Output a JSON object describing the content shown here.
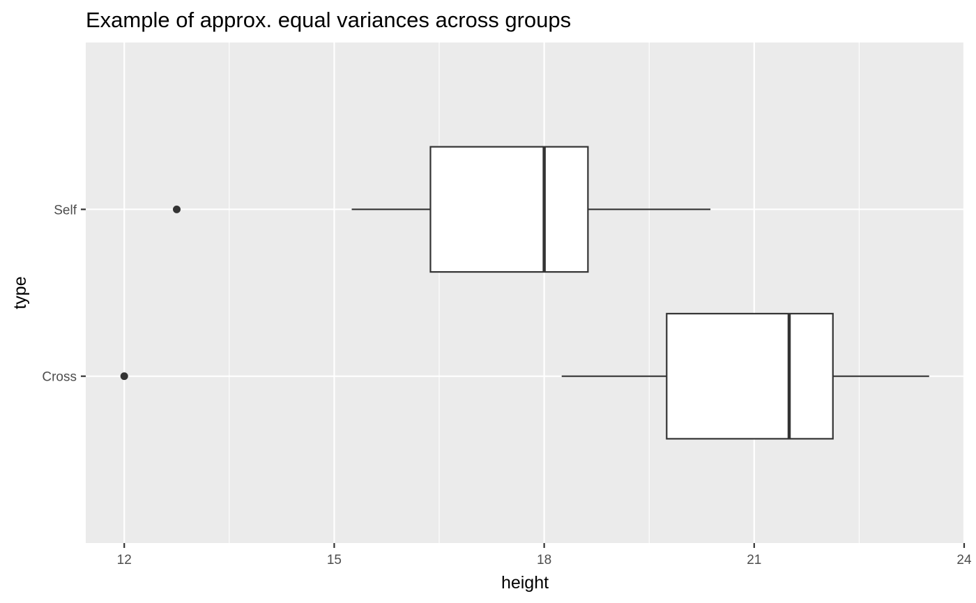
{
  "chart_data": {
    "type": "boxplot",
    "orientation": "horizontal",
    "title": "Example of approx. equal variances across groups",
    "xlabel": "height",
    "ylabel": "type",
    "xlim": [
      11.45,
      24.0
    ],
    "xticks": [
      12,
      15,
      18,
      21,
      24
    ],
    "x_minor_gridlines": [
      13.5,
      16.5,
      19.5,
      22.5
    ],
    "grid": true,
    "categories": [
      "Cross",
      "Self"
    ],
    "series": [
      {
        "category": "Cross",
        "whisker_low": 18.25,
        "q1": 19.75,
        "median": 21.5,
        "q3": 22.125,
        "whisker_high": 23.5,
        "outliers": [
          12.0
        ]
      },
      {
        "category": "Self",
        "whisker_low": 15.25,
        "q1": 16.375,
        "median": 18.0,
        "q3": 18.625,
        "whisker_high": 20.375,
        "outliers": [
          12.75
        ]
      }
    ],
    "colors": {
      "panel_background": "#ebebeb",
      "grid": "#ffffff",
      "box_fill": "#ffffff",
      "box_stroke": "#333333",
      "tick": "#333333"
    }
  }
}
